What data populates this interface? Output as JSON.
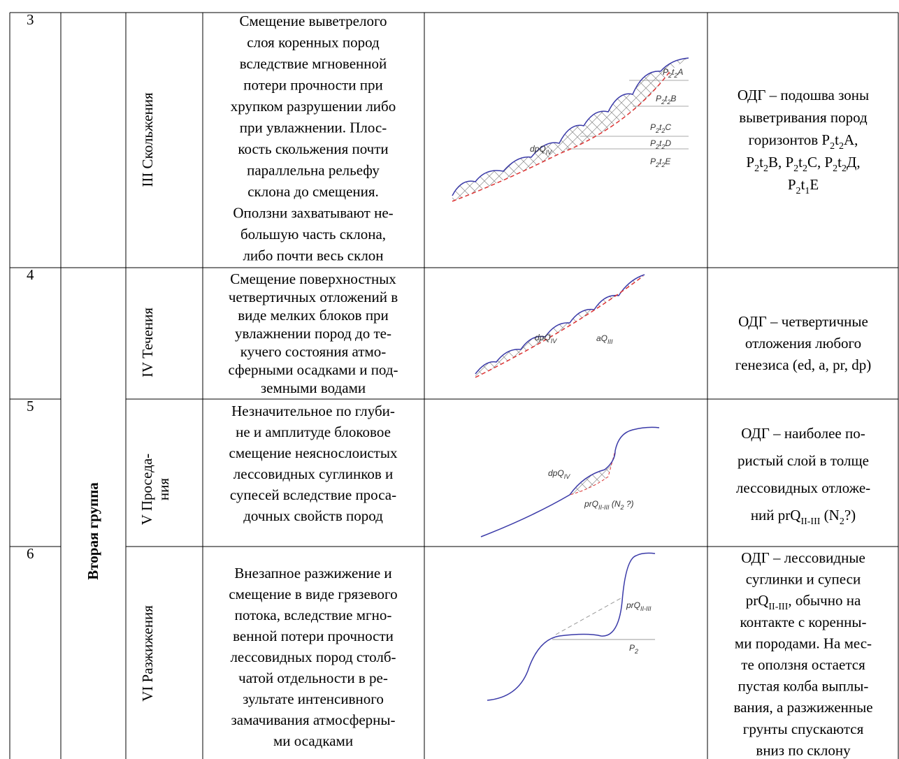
{
  "table": {
    "group_label": "Вторая группа",
    "rows": [
      {
        "number": "3",
        "type": [
          "III Скольжения"
        ],
        "description": [
          "Смещение выветрелого",
          "слоя коренных пород",
          "вследствие мгновенной",
          "потери прочности при",
          "хрупком разрушении либо",
          "при увлажнении. Плос-",
          "кость скольжения почти",
          "параллельна рельефу",
          "склона до смещения.",
          "Оползни захватывают не-",
          "большую часть склона,",
          "либо почти весь склон"
        ],
        "diagram_labels": [
          [
            "P",
            {
              "sub": "2"
            },
            "t",
            {
              "sub": "2"
            },
            "A"
          ],
          [
            "P",
            {
              "sub": "2"
            },
            "t",
            {
              "sub": "2"
            },
            "B"
          ],
          [
            "P",
            {
              "sub": "2"
            },
            "t",
            {
              "sub": "2"
            },
            "C"
          ],
          [
            "P",
            {
              "sub": "2"
            },
            "t",
            {
              "sub": "2"
            },
            "D"
          ],
          [
            "P",
            {
              "sub": "2"
            },
            "t",
            {
              "sub": "2"
            },
            "E"
          ],
          [
            "dpQ",
            {
              "sub": "IV"
            }
          ]
        ],
        "odg": [
          [
            "ОДГ – подошва зоны"
          ],
          [
            "выветривания пород"
          ],
          [
            "горизонтов P",
            {
              "sub": "2"
            },
            "t",
            {
              "sub": "2"
            },
            "A,"
          ],
          [
            "P",
            {
              "sub": "2"
            },
            "t",
            {
              "sub": "2"
            },
            "B, P",
            {
              "sub": "2"
            },
            "t",
            {
              "sub": "2"
            },
            "C, P",
            {
              "sub": "2"
            },
            "t",
            {
              "sub": "2"
            },
            "Д,"
          ],
          [
            "P",
            {
              "sub": "2"
            },
            "t",
            {
              "sub": "1"
            },
            "E"
          ]
        ]
      },
      {
        "number": "4",
        "type": [
          "IV Течения"
        ],
        "description": [
          "Смещение поверхностных",
          "четвертичных отложений в",
          "виде мелких блоков при",
          "увлажнении пород до те-",
          "кучего состояния атмо-",
          "сферными осадками и под-",
          "земными водами"
        ],
        "diagram_labels": [
          [
            "dpQ",
            {
              "sub": "IV"
            }
          ],
          [
            "aQ",
            {
              "sub": "III"
            }
          ]
        ],
        "odg": [
          [
            "ОДГ – четвертичные"
          ],
          [
            "отложения любого"
          ],
          [
            "генезиса (ed, a, pr, dp)"
          ]
        ]
      },
      {
        "number": "5",
        "type": [
          "V Проседа-",
          "ния"
        ],
        "description": [
          "Незначительное по глуби-",
          "не и амплитуде блоковое",
          "смещение неяснослоистых",
          "лессовидных суглинков и",
          "супесей вследствие проса-",
          "дочных свойств пород"
        ],
        "diagram_labels": [
          [
            "dpQ",
            {
              "sub": "IV"
            }
          ],
          [
            "prQ",
            {
              "sub": "II-III"
            },
            " (N",
            {
              "sub": "2"
            },
            " ?)"
          ]
        ],
        "odg": [
          [
            "ОДГ – наиболее по-"
          ],
          [
            "ристый слой в толще"
          ],
          [
            "лессовидных отложе-"
          ],
          [
            "ний prQ",
            {
              "sub": "II-III"
            },
            " (N",
            {
              "sub": "2"
            },
            "?)"
          ]
        ]
      },
      {
        "number": "6",
        "type": [
          "VI Разжижения"
        ],
        "description": [
          "Внезапное разжижение и",
          "смещение в виде грязевого",
          "потока, вследствие мгно-",
          "венной потери прочности",
          "лессовидных пород столб-",
          "чатой отдельности в ре-",
          "зультате интенсивного",
          "замачивания атмосферны-",
          "ми осадками"
        ],
        "diagram_labels": [
          [
            "prQ",
            {
              "sub": "II-III"
            }
          ],
          [
            "P",
            {
              "sub": "2"
            }
          ]
        ],
        "odg": [
          [
            "ОДГ – лессовидные"
          ],
          [
            "суглинки и супеси"
          ],
          [
            "prQ",
            {
              "sub": "II-III"
            },
            ", обычно на"
          ],
          [
            "контакте с коренны-"
          ],
          [
            "ми породами. На мес-"
          ],
          [
            "те оползня остается"
          ],
          [
            "пустая колба выплы-"
          ],
          [
            "вания, а разжиженные"
          ],
          [
            "грунты спускаются"
          ],
          [
            "вниз по склону"
          ]
        ]
      }
    ]
  }
}
